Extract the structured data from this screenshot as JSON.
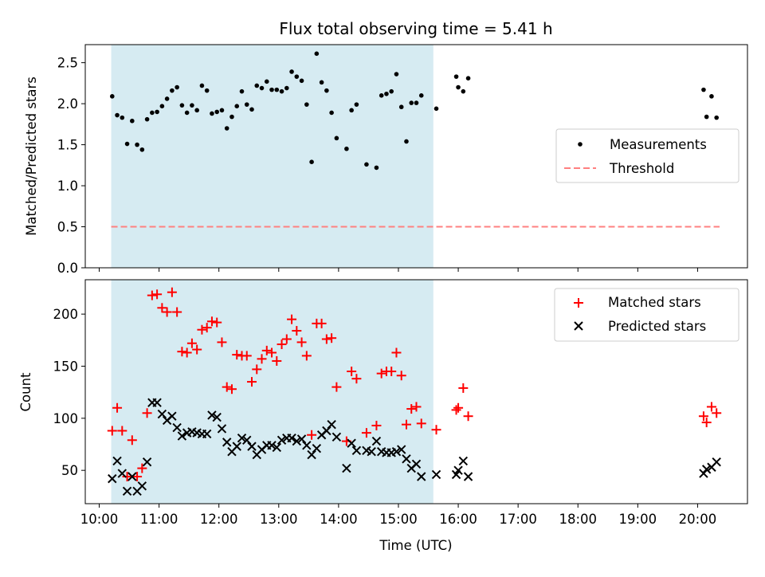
{
  "chart_data": [
    {
      "type": "scatter",
      "title": "Flux total observing time = 5.41 h",
      "xlabel": "",
      "ylabel": "Matched/Predicted stars",
      "xlim": [
        "09:46",
        "20:50"
      ],
      "ylim": [
        0,
        2.72
      ],
      "xticks": [
        "10:00",
        "11:00",
        "12:00",
        "13:00",
        "14:00",
        "15:00",
        "16:00",
        "17:00",
        "18:00",
        "19:00",
        "20:00"
      ],
      "yticks": [
        "0.0",
        "0.5",
        "1.0",
        "1.5",
        "2.0",
        "2.5"
      ],
      "shaded_span": {
        "start": "10:12",
        "end": "15:35",
        "color": "#add8e6"
      },
      "legend": {
        "placement": "center-right"
      },
      "series": [
        {
          "name": "Measurements",
          "kind": "points",
          "color": "#000000",
          "points": [
            [
              "10:13",
              2.09
            ],
            [
              "10:18",
              1.86
            ],
            [
              "10:23",
              1.83
            ],
            [
              "10:28",
              1.51
            ],
            [
              "10:33",
              1.79
            ],
            [
              "10:38",
              1.5
            ],
            [
              "10:43",
              1.44
            ],
            [
              "10:48",
              1.81
            ],
            [
              "10:53",
              1.89
            ],
            [
              "10:58",
              1.9
            ],
            [
              "11:03",
              1.97
            ],
            [
              "11:08",
              2.06
            ],
            [
              "11:13",
              2.16
            ],
            [
              "11:18",
              2.2
            ],
            [
              "11:23",
              1.98
            ],
            [
              "11:28",
              1.89
            ],
            [
              "11:33",
              1.98
            ],
            [
              "11:38",
              1.92
            ],
            [
              "11:43",
              2.22
            ],
            [
              "11:48",
              2.16
            ],
            [
              "11:53",
              1.88
            ],
            [
              "11:58",
              1.9
            ],
            [
              "12:03",
              1.92
            ],
            [
              "12:08",
              1.7
            ],
            [
              "12:13",
              1.84
            ],
            [
              "12:18",
              1.97
            ],
            [
              "12:23",
              2.15
            ],
            [
              "12:28",
              1.99
            ],
            [
              "12:33",
              1.93
            ],
            [
              "12:38",
              2.22
            ],
            [
              "12:43",
              2.19
            ],
            [
              "12:48",
              2.27
            ],
            [
              "12:53",
              2.17
            ],
            [
              "12:58",
              2.17
            ],
            [
              "13:03",
              2.15
            ],
            [
              "13:08",
              2.19
            ],
            [
              "13:13",
              2.39
            ],
            [
              "13:18",
              2.33
            ],
            [
              "13:23",
              2.28
            ],
            [
              "13:28",
              1.99
            ],
            [
              "13:33",
              1.29
            ],
            [
              "13:38",
              2.61
            ],
            [
              "13:43",
              2.26
            ],
            [
              "13:48",
              2.16
            ],
            [
              "13:53",
              1.89
            ],
            [
              "13:58",
              1.58
            ],
            [
              "14:08",
              1.45
            ],
            [
              "14:13",
              1.92
            ],
            [
              "14:18",
              1.99
            ],
            [
              "14:28",
              1.26
            ],
            [
              "14:38",
              1.22
            ],
            [
              "14:43",
              2.1
            ],
            [
              "14:48",
              2.12
            ],
            [
              "14:53",
              2.15
            ],
            [
              "14:58",
              2.36
            ],
            [
              "15:03",
              1.96
            ],
            [
              "15:08",
              1.54
            ],
            [
              "15:13",
              2.01
            ],
            [
              "15:18",
              2.01
            ],
            [
              "15:23",
              2.1
            ],
            [
              "15:38",
              1.94
            ],
            [
              "15:58",
              2.33
            ],
            [
              "16:00",
              2.2
            ],
            [
              "16:05",
              2.15
            ],
            [
              "16:10",
              2.31
            ],
            [
              "20:06",
              2.17
            ],
            [
              "20:09",
              1.84
            ],
            [
              "20:14",
              2.09
            ],
            [
              "20:19",
              1.83
            ]
          ]
        },
        {
          "name": "Threshold",
          "kind": "dashed-line",
          "color": "#ff8080",
          "x": [
            "10:12",
            "20:22"
          ],
          "y": 0.5
        }
      ]
    },
    {
      "type": "scatter",
      "title": "",
      "xlabel": "Time (UTC)",
      "ylabel": "Count",
      "xlim": [
        "09:46",
        "20:50"
      ],
      "ylim": [
        18,
        233
      ],
      "xticks": [
        "10:00",
        "11:00",
        "12:00",
        "13:00",
        "14:00",
        "15:00",
        "16:00",
        "17:00",
        "18:00",
        "19:00",
        "20:00"
      ],
      "yticks": [
        "50",
        "100",
        "150",
        "200"
      ],
      "shaded_span": {
        "start": "10:12",
        "end": "15:35",
        "color": "#add8e6"
      },
      "legend": {
        "placement": "top-right"
      },
      "series": [
        {
          "name": "Matched stars",
          "marker": "plus",
          "color": "#ff0000",
          "points": [
            [
              "10:13",
              88
            ],
            [
              "10:18",
              110
            ],
            [
              "10:23",
              88
            ],
            [
              "10:28",
              44
            ],
            [
              "10:33",
              79
            ],
            [
              "10:38",
              44
            ],
            [
              "10:43",
              52
            ],
            [
              "10:48",
              105
            ],
            [
              "10:53",
              218
            ],
            [
              "10:58",
              219
            ],
            [
              "11:03",
              206
            ],
            [
              "11:08",
              202
            ],
            [
              "11:13",
              221
            ],
            [
              "11:18",
              202
            ],
            [
              "11:23",
              164
            ],
            [
              "11:28",
              163
            ],
            [
              "11:33",
              172
            ],
            [
              "11:38",
              166
            ],
            [
              "11:43",
              185
            ],
            [
              "11:48",
              187
            ],
            [
              "11:53",
              193
            ],
            [
              "11:58",
              192
            ],
            [
              "12:03",
              173
            ],
            [
              "12:08",
              130
            ],
            [
              "12:13",
              128
            ],
            [
              "12:18",
              161
            ],
            [
              "12:23",
              160
            ],
            [
              "12:28",
              160
            ],
            [
              "12:33",
              135
            ],
            [
              "12:38",
              147
            ],
            [
              "12:43",
              157
            ],
            [
              "12:48",
              165
            ],
            [
              "12:53",
              163
            ],
            [
              "12:58",
              155
            ],
            [
              "13:03",
              171
            ],
            [
              "13:08",
              176
            ],
            [
              "13:13",
              195
            ],
            [
              "13:18",
              184
            ],
            [
              "13:23",
              173
            ],
            [
              "13:28",
              160
            ],
            [
              "13:33",
              84
            ],
            [
              "13:38",
              191
            ],
            [
              "13:43",
              191
            ],
            [
              "13:48",
              176
            ],
            [
              "13:53",
              177
            ],
            [
              "13:58",
              130
            ],
            [
              "14:08",
              78
            ],
            [
              "14:13",
              145
            ],
            [
              "14:18",
              138
            ],
            [
              "14:28",
              86
            ],
            [
              "14:38",
              93
            ],
            [
              "14:43",
              143
            ],
            [
              "14:48",
              145
            ],
            [
              "14:53",
              145
            ],
            [
              "14:58",
              163
            ],
            [
              "15:03",
              141
            ],
            [
              "15:08",
              94
            ],
            [
              "15:13",
              109
            ],
            [
              "15:18",
              111
            ],
            [
              "15:23",
              95
            ],
            [
              "15:38",
              89
            ],
            [
              "15:58",
              108
            ],
            [
              "16:00",
              110
            ],
            [
              "16:05",
              129
            ],
            [
              "16:10",
              102
            ],
            [
              "20:06",
              102
            ],
            [
              "20:09",
              96
            ],
            [
              "20:14",
              111
            ],
            [
              "20:19",
              105
            ]
          ]
        },
        {
          "name": "Predicted stars",
          "marker": "x",
          "color": "#000000",
          "points": [
            [
              "10:13",
              42
            ],
            [
              "10:18",
              59
            ],
            [
              "10:23",
              47
            ],
            [
              "10:28",
              30
            ],
            [
              "10:33",
              44
            ],
            [
              "10:38",
              30
            ],
            [
              "10:43",
              35
            ],
            [
              "10:48",
              58
            ],
            [
              "10:53",
              115
            ],
            [
              "10:58",
              115
            ],
            [
              "11:03",
              104
            ],
            [
              "11:08",
              98
            ],
            [
              "11:13",
              102
            ],
            [
              "11:18",
              91
            ],
            [
              "11:23",
              83
            ],
            [
              "11:28",
              86
            ],
            [
              "11:33",
              87
            ],
            [
              "11:38",
              86
            ],
            [
              "11:43",
              85
            ],
            [
              "11:48",
              85
            ],
            [
              "11:53",
              103
            ],
            [
              "11:58",
              101
            ],
            [
              "12:03",
              90
            ],
            [
              "12:08",
              77
            ],
            [
              "12:13",
              68
            ],
            [
              "12:18",
              73
            ],
            [
              "12:23",
              81
            ],
            [
              "12:28",
              79
            ],
            [
              "12:33",
              73
            ],
            [
              "12:38",
              65
            ],
            [
              "12:43",
              70
            ],
            [
              "12:48",
              74
            ],
            [
              "12:53",
              74
            ],
            [
              "12:58",
              72
            ],
            [
              "13:03",
              79
            ],
            [
              "13:08",
              81
            ],
            [
              "13:13",
              81
            ],
            [
              "13:18",
              78
            ],
            [
              "13:23",
              80
            ],
            [
              "13:28",
              74
            ],
            [
              "13:33",
              65
            ],
            [
              "13:38",
              71
            ],
            [
              "13:43",
              84
            ],
            [
              "13:48",
              88
            ],
            [
              "13:53",
              94
            ],
            [
              "13:58",
              82
            ],
            [
              "14:08",
              52
            ],
            [
              "14:13",
              76
            ],
            [
              "14:18",
              69
            ],
            [
              "14:28",
              69
            ],
            [
              "14:33",
              68
            ],
            [
              "14:38",
              78
            ],
            [
              "14:43",
              68
            ],
            [
              "14:48",
              67
            ],
            [
              "14:53",
              67
            ],
            [
              "14:58",
              68
            ],
            [
              "15:03",
              70
            ],
            [
              "15:08",
              61
            ],
            [
              "15:13",
              52
            ],
            [
              "15:18",
              56
            ],
            [
              "15:23",
              44
            ],
            [
              "15:38",
              46
            ],
            [
              "15:58",
              46
            ],
            [
              "16:00",
              50
            ],
            [
              "16:05",
              59
            ],
            [
              "16:10",
              44
            ],
            [
              "20:06",
              47
            ],
            [
              "20:09",
              51
            ],
            [
              "20:14",
              53
            ],
            [
              "20:19",
              58
            ]
          ]
        }
      ]
    }
  ]
}
